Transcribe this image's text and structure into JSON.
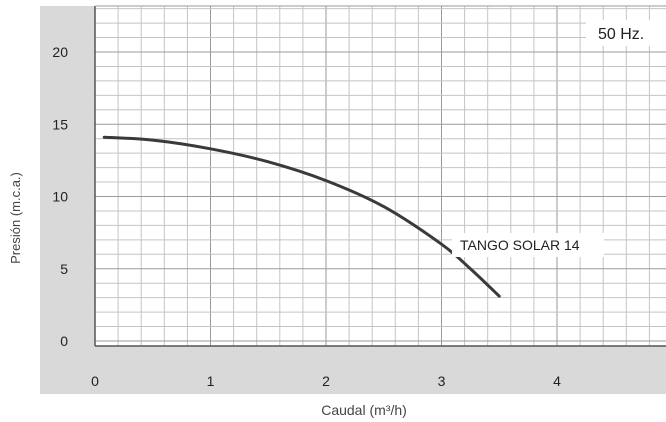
{
  "chart_data": {
    "type": "line",
    "title": "",
    "xlabel": "Caudal (m³/h)",
    "ylabel": "Presión (m.c.a.)",
    "xlim": [
      0,
      4.8
    ],
    "ylim": [
      -0.5,
      23
    ],
    "x_ticks": [
      "0",
      "1",
      "2",
      "3",
      "4"
    ],
    "x_tick_values": [
      0,
      1,
      2,
      3,
      4
    ],
    "y_ticks": [
      "0",
      "5",
      "10",
      "15",
      "20"
    ],
    "y_tick_values": [
      0,
      5,
      10,
      15,
      20
    ],
    "grid": true,
    "legend": "none",
    "badge": "50 Hz.",
    "series": [
      {
        "name": "TANGO SOLAR 14",
        "color": "#3a3a3a",
        "x": [
          0.08,
          0.5,
          1.0,
          1.5,
          2.0,
          2.5,
          3.0,
          3.25,
          3.5
        ],
        "y": [
          14.1,
          13.9,
          13.3,
          12.4,
          11.1,
          9.3,
          6.7,
          5.0,
          3.1
        ]
      }
    ]
  },
  "colors": {
    "grid": "#9a9a9a",
    "grid_minor": "#c4c4c4",
    "axis_band": "#d9d9d9",
    "frame": "#555555",
    "text": "#222222"
  }
}
